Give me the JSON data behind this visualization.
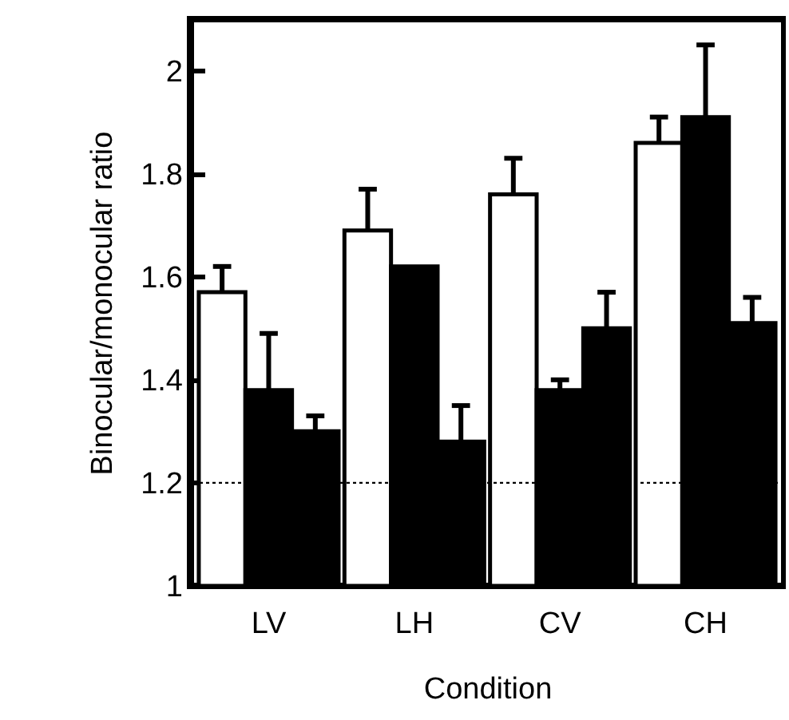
{
  "chart_data": {
    "type": "bar",
    "xlabel": "Condition",
    "ylabel": "Binocular/monocular ratio",
    "categories": [
      "LV",
      "LH",
      "CV",
      "CH"
    ],
    "series": [
      {
        "color": "#ffffff",
        "values": [
          1.57,
          1.69,
          1.76,
          1.86
        ],
        "errors": [
          [
            1.57,
            1.62
          ],
          [
            1.69,
            1.77
          ],
          [
            1.76,
            1.83
          ],
          [
            1.86,
            1.91
          ]
        ]
      },
      {
        "color": "#000000",
        "values": [
          1.38,
          1.62,
          1.38,
          1.91
        ],
        "errors": [
          [
            1.38,
            1.49
          ],
          null,
          [
            1.38,
            1.4
          ],
          [
            1.91,
            2.05
          ]
        ]
      },
      {
        "color": "#000000",
        "values": [
          1.3,
          1.28,
          1.5,
          1.51
        ],
        "errors": [
          [
            1.3,
            1.33
          ],
          [
            1.28,
            1.35
          ],
          [
            1.5,
            1.57
          ],
          [
            1.51,
            1.56
          ]
        ]
      }
    ],
    "ylim": [
      1,
      2.1
    ],
    "yticks": [
      1,
      1.2,
      1.4,
      1.6,
      1.8,
      2
    ],
    "grid": false,
    "legend": false,
    "ref_lines": [
      {
        "axis": "y",
        "value": 1.2,
        "color": "#000000",
        "line_style": "dotted"
      }
    ]
  }
}
